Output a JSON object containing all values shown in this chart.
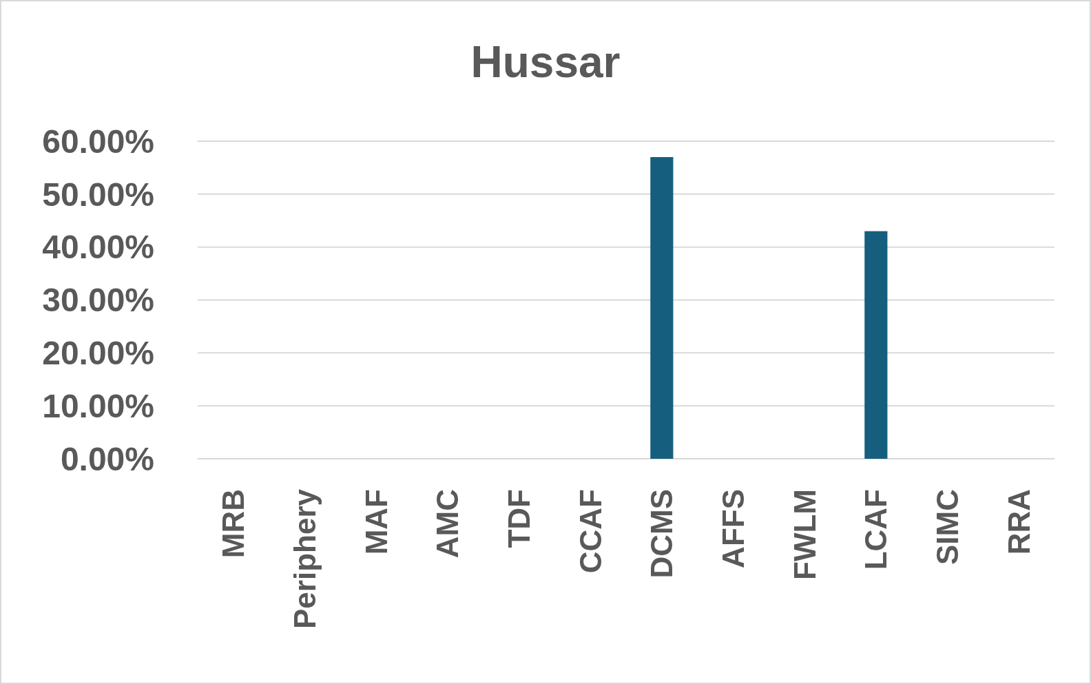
{
  "chart_data": {
    "type": "bar",
    "title": "Hussar",
    "categories": [
      "MRB",
      "Periphery",
      "MAF",
      "AMC",
      "TDF",
      "CCAF",
      "DCMS",
      "AFFS",
      "FWLM",
      "LCAF",
      "SIMC",
      "RRA"
    ],
    "values": [
      0,
      0,
      0,
      0,
      0,
      0,
      57,
      0,
      0,
      43,
      0,
      0
    ],
    "color": "#165e7e",
    "ylim": [
      0,
      60
    ],
    "yticks": [
      {
        "value": 0,
        "label": "0.00%"
      },
      {
        "value": 10,
        "label": "10.00%"
      },
      {
        "value": 20,
        "label": "20.00%"
      },
      {
        "value": 30,
        "label": "30.00%"
      },
      {
        "value": 40,
        "label": "40.00%"
      },
      {
        "value": 50,
        "label": "50.00%"
      },
      {
        "value": 60,
        "label": "60.00%"
      }
    ],
    "grid": "y"
  }
}
